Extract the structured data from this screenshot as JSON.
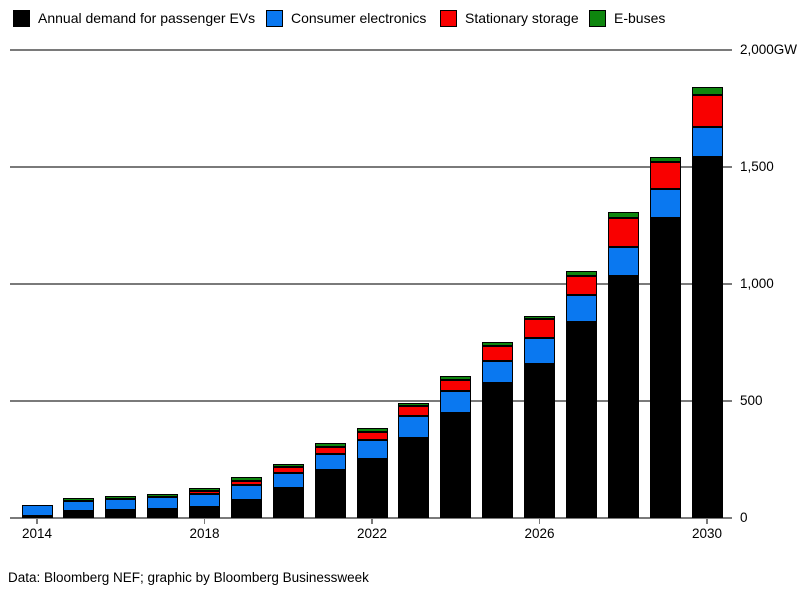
{
  "chart_data": {
    "type": "bar",
    "stacked": true,
    "title": "",
    "categories": [
      "2014",
      "2015",
      "2016",
      "2017",
      "2018",
      "2019",
      "2020",
      "2021",
      "2022",
      "2023",
      "2024",
      "2025",
      "2026",
      "2027",
      "2028",
      "2029",
      "2030"
    ],
    "series": [
      {
        "key": "ev",
        "name": "Annual demand for passenger EVs",
        "color": "#000000",
        "values": [
          10,
          30,
          35,
          38,
          45,
          78,
          127,
          205,
          253,
          342,
          450,
          575,
          658,
          836,
          1036,
          1281,
          1543
        ]
      },
      {
        "key": "ce",
        "name": "Consumer electronics",
        "color": "#0a78f0",
        "values": [
          45,
          44,
          45,
          50,
          57,
          62,
          65,
          68,
          80,
          95,
          92,
          98,
          110,
          117,
          122,
          124,
          130
        ]
      },
      {
        "key": "ss",
        "name": "Stationary storage",
        "color": "#f90000",
        "values": [
          0,
          0,
          0,
          0,
          13,
          18,
          24,
          31,
          36,
          40,
          48,
          62,
          81,
          80,
          126,
          116,
          134
        ]
      },
      {
        "key": "eb",
        "name": "E-buses",
        "color": "#0e860e",
        "values": [
          0,
          10,
          14,
          15,
          14,
          18,
          15,
          18,
          17,
          14,
          16,
          18,
          16,
          22,
          24,
          22,
          36
        ]
      }
    ],
    "y_axis": {
      "min": 0,
      "max": 2000,
      "unit": "GW",
      "tick_values": [
        0,
        500,
        1000,
        1500,
        2000
      ],
      "labels": [
        "0",
        "500",
        "1,000",
        "1,500",
        "2,000GW"
      ]
    },
    "x_axis": {
      "tick_labels": [
        "2014",
        "2018",
        "2022",
        "2026",
        "2030"
      ],
      "tick_indices": [
        0,
        4,
        8,
        12,
        16
      ]
    },
    "legend_position": "top",
    "grid": true
  },
  "footer": {
    "text": "Data: Bloomberg NEF; graphic by Bloomberg Businessweek"
  },
  "colors": {
    "background": "#ffffff",
    "gridline": "#7a7a7a",
    "text": "#000000"
  }
}
